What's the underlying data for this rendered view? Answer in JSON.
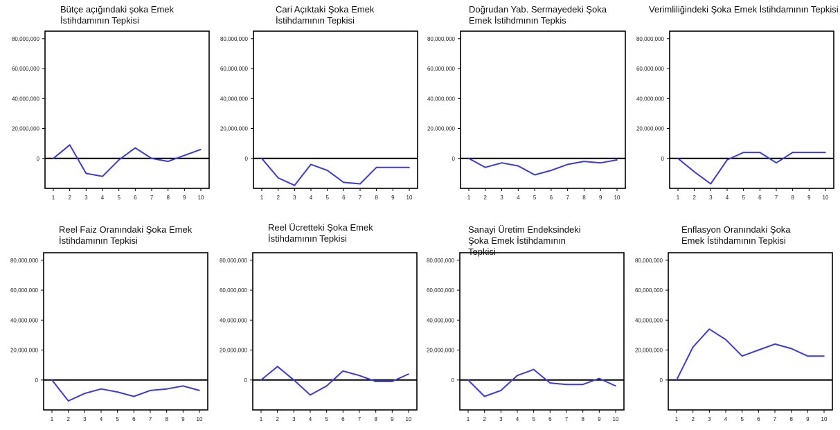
{
  "chart_data": [
    {
      "type": "line",
      "title": "Bütçe açığındaki şoka Emek İstihdamının Tepkisi",
      "x": [
        1,
        2,
        3,
        4,
        5,
        6,
        7,
        8,
        9,
        10
      ],
      "series": [
        {
          "values": [
            0,
            9000000,
            -10000000,
            -12000000,
            -1000000,
            7000000,
            0,
            -2000000,
            2000000,
            6000000
          ]
        }
      ],
      "ylim": [
        -20000000,
        85000000
      ],
      "yticks": [
        0,
        20000000,
        40000000,
        60000000,
        80000000
      ],
      "ytick_labels": [
        "0",
        "20,000,000",
        "40,000,000",
        "60,000,000",
        "80,000,000"
      ],
      "xtick_labels": [
        "1",
        "2",
        "3",
        "4",
        "5",
        "6",
        "7",
        "8",
        "9",
        "10"
      ],
      "grid": false
    },
    {
      "type": "line",
      "title": "Cari Açıktaki Şoka Emek İstihdamının Tepkisi",
      "x": [
        1,
        2,
        3,
        4,
        5,
        6,
        7,
        8,
        9,
        10
      ],
      "series": [
        {
          "values": [
            0,
            -13000000,
            -18000000,
            -4000000,
            -8000000,
            -16000000,
            -17000000,
            -6000000,
            -6000000,
            -6000000
          ]
        }
      ],
      "ylim": [
        -20000000,
        85000000
      ],
      "yticks": [
        0,
        20000000,
        40000000,
        60000000,
        80000000
      ],
      "ytick_labels": [
        "0",
        "20,000,000",
        "40,000,000",
        "60,000,000",
        "80,000,000"
      ],
      "xtick_labels": [
        "1",
        "2",
        "3",
        "4",
        "5",
        "6",
        "7",
        "8",
        "9",
        "10"
      ],
      "grid": false
    },
    {
      "type": "line",
      "title": "Doğrudan Yab. Sermayedeki Şoka Emek İstihdmının Tepkis",
      "x": [
        1,
        2,
        3,
        4,
        5,
        6,
        7,
        8,
        9,
        10
      ],
      "series": [
        {
          "values": [
            0,
            -6000000,
            -3000000,
            -5000000,
            -11000000,
            -8000000,
            -4000000,
            -2000000,
            -3000000,
            -1000000
          ]
        }
      ],
      "ylim": [
        -20000000,
        85000000
      ],
      "yticks": [
        0,
        20000000,
        40000000,
        60000000,
        80000000
      ],
      "ytick_labels": [
        "0",
        "20,000,000",
        "40,000,000",
        "60,000,000",
        "80,000,000"
      ],
      "xtick_labels": [
        "1",
        "2",
        "3",
        "4",
        "5",
        "6",
        "7",
        "8",
        "9",
        "10"
      ],
      "grid": false
    },
    {
      "type": "line",
      "title": "Verimliliğindeki Şoka Emek İstihdamının Tepkisi",
      "x": [
        1,
        2,
        3,
        4,
        5,
        6,
        7,
        8,
        9,
        10
      ],
      "series": [
        {
          "values": [
            0,
            -9000000,
            -17000000,
            -1000000,
            4000000,
            4000000,
            -3000000,
            4000000,
            4000000,
            4000000
          ]
        }
      ],
      "ylim": [
        -20000000,
        85000000
      ],
      "yticks": [
        0,
        20000000,
        40000000,
        60000000,
        80000000
      ],
      "ytick_labels": [
        "0",
        "20,000,000",
        "40,000,000",
        "60,000,000",
        "80,000,000"
      ],
      "xtick_labels": [
        "1",
        "2",
        "3",
        "4",
        "5",
        "6",
        "7",
        "8",
        "9",
        "10"
      ],
      "grid": false
    },
    {
      "type": "line",
      "title": "Reel Faiz Oranındaki Şoka Emek İstihdamının Tepkisi",
      "x": [
        1,
        2,
        3,
        4,
        5,
        6,
        7,
        8,
        9,
        10
      ],
      "series": [
        {
          "values": [
            0,
            -14000000,
            -9000000,
            -6000000,
            -8000000,
            -11000000,
            -7000000,
            -6000000,
            -4000000,
            -7000000
          ]
        }
      ],
      "ylim": [
        -20000000,
        85000000
      ],
      "yticks": [
        0,
        20000000,
        40000000,
        60000000,
        80000000
      ],
      "ytick_labels": [
        "0",
        "20,000,000",
        "40,000,000",
        "60,000,000",
        "80,000,000"
      ],
      "xtick_labels": [
        "1",
        "2",
        "3",
        "4",
        "5",
        "6",
        "7",
        "8",
        "9",
        "10"
      ],
      "grid": false
    },
    {
      "type": "line",
      "title": "Reel Ücretteki Şoka Emek İstihdamının Tepkisi",
      "x": [
        1,
        2,
        3,
        4,
        5,
        6,
        7,
        8,
        9,
        10
      ],
      "series": [
        {
          "values": [
            0,
            9000000,
            0,
            -10000000,
            -4000000,
            6000000,
            3000000,
            -1000000,
            -1000000,
            4000000
          ]
        }
      ],
      "ylim": [
        -20000000,
        85000000
      ],
      "yticks": [
        0,
        20000000,
        40000000,
        60000000,
        80000000
      ],
      "ytick_labels": [
        "0",
        "20,000,000",
        "40,000,000",
        "60,000,000",
        "80,000,000"
      ],
      "xtick_labels": [
        "1",
        "2",
        "3",
        "4",
        "5",
        "6",
        "7",
        "8",
        "9",
        "10"
      ],
      "grid": false
    },
    {
      "type": "line",
      "title": "Sanayi Üretim Endeksindeki Şoka Emek İstihdamının Tepkisi",
      "x": [
        1,
        2,
        3,
        4,
        5,
        6,
        7,
        8,
        9,
        10
      ],
      "series": [
        {
          "values": [
            0,
            -11000000,
            -7000000,
            3000000,
            7000000,
            -2000000,
            -3000000,
            -3000000,
            1000000,
            -4000000
          ]
        }
      ],
      "ylim": [
        -20000000,
        85000000
      ],
      "yticks": [
        0,
        20000000,
        40000000,
        60000000,
        80000000
      ],
      "ytick_labels": [
        "0",
        "20,000,000",
        "40,000,000",
        "60,000,000",
        "80,000,000"
      ],
      "xtick_labels": [
        "1",
        "2",
        "3",
        "4",
        "5",
        "6",
        "7",
        "8",
        "9",
        "10"
      ],
      "grid": false
    },
    {
      "type": "line",
      "title": "Enflasyon Oranındaki Şoka Emek İstihdamının Tepkisi",
      "x": [
        1,
        2,
        3,
        4,
        5,
        6,
        7,
        8,
        9,
        10
      ],
      "series": [
        {
          "values": [
            0,
            22000000,
            34000000,
            27000000,
            16000000,
            20000000,
            24000000,
            21000000,
            16000000,
            16000000
          ]
        }
      ],
      "ylim": [
        -20000000,
        85000000
      ],
      "yticks": [
        0,
        20000000,
        40000000,
        60000000,
        80000000
      ],
      "ytick_labels": [
        "0",
        "20,000,000",
        "40,000,000",
        "60,000,000",
        "80,000,000"
      ],
      "xtick_labels": [
        "1",
        "2",
        "3",
        "4",
        "5",
        "6",
        "7",
        "8",
        "9",
        "10"
      ],
      "grid": false
    }
  ],
  "style": {
    "line_color": "#3a3ae0",
    "zero_line_color": "#000000",
    "frame_color": "#000000",
    "text_color": "#111111"
  }
}
